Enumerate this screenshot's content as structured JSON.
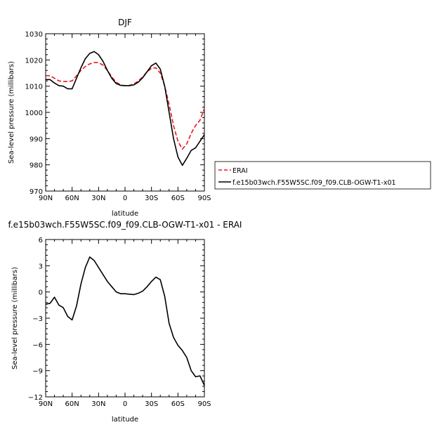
{
  "chart_data": [
    {
      "type": "line",
      "title": "DJF",
      "xlabel": "latitude",
      "ylabel": "Sea-level pressure (millibars)",
      "xlim": [
        90,
        -90
      ],
      "ylim": [
        970,
        1030
      ],
      "x_ticks": [
        90,
        60,
        30,
        0,
        -30,
        -60,
        -90
      ],
      "x_tick_labels": [
        "90N",
        "60N",
        "30N",
        "0",
        "30S",
        "60S",
        "90S"
      ],
      "y_ticks": [
        970,
        980,
        990,
        1000,
        1010,
        1020,
        1030
      ],
      "y_tick_labels": [
        "970",
        "980",
        "990",
        "1000",
        "1010",
        "1020",
        "1030"
      ],
      "legend_position": "right",
      "series": [
        {
          "name": "ERAI",
          "color": "#e8171e",
          "dash": "dashed",
          "x": [
            90,
            85,
            80,
            75,
            70,
            65,
            60,
            55,
            50,
            45,
            40,
            35,
            30,
            25,
            20,
            15,
            10,
            5,
            0,
            -5,
            -10,
            -15,
            -20,
            -25,
            -30,
            -35,
            -40,
            -45,
            -50,
            -55,
            -60,
            -65,
            -70,
            -75,
            -80,
            -85,
            -90
          ],
          "y": [
            1014,
            1014,
            1013,
            1012,
            1011.8,
            1011.8,
            1012,
            1014,
            1016,
            1017.5,
            1018.5,
            1019,
            1019,
            1018,
            1016,
            1013.5,
            1011.5,
            1010.5,
            1010.2,
            1010.3,
            1010.8,
            1012,
            1013.5,
            1015.5,
            1016.8,
            1017,
            1015,
            1010,
            1003,
            995,
            989,
            986,
            988,
            992,
            995,
            997,
            1001.5
          ]
        },
        {
          "name": "f.e15b03wch.F55W5SC.f09_f09.CLB-OGW-T1-x01",
          "color": "#000000",
          "dash": "solid",
          "x": [
            90,
            85,
            80,
            75,
            70,
            65,
            60,
            55,
            50,
            45,
            40,
            35,
            30,
            25,
            20,
            15,
            10,
            5,
            0,
            -5,
            -10,
            -15,
            -20,
            -25,
            -30,
            -35,
            -40,
            -45,
            -50,
            -55,
            -60,
            -65,
            -70,
            -75,
            -80,
            -85,
            -90
          ],
          "y": [
            1012.5,
            1012.5,
            1011.2,
            1010.2,
            1010,
            1009,
            1009,
            1013,
            1017,
            1020.5,
            1022.5,
            1023.2,
            1022,
            1019.5,
            1016,
            1013,
            1011,
            1010.3,
            1010.2,
            1010.2,
            1010.5,
            1011.5,
            1013.2,
            1015.5,
            1017.8,
            1018.8,
            1016.5,
            1010,
            1000,
            990,
            983,
            979.8,
            982.5,
            985.5,
            986.5,
            989,
            991.5
          ]
        }
      ]
    },
    {
      "type": "line",
      "title": "f.e15b03wch.F55W5SC.f09_f09.CLB-OGW-T1-x01 - ERAI",
      "xlabel": "latitude",
      "ylabel": "Sea-level pressure (millibars)",
      "xlim": [
        90,
        -90
      ],
      "ylim": [
        -12,
        6
      ],
      "x_ticks": [
        90,
        60,
        30,
        0,
        -30,
        -60,
        -90
      ],
      "x_tick_labels": [
        "90N",
        "60N",
        "30N",
        "0",
        "30S",
        "60S",
        "90S"
      ],
      "y_ticks": [
        -12,
        -9,
        -6,
        -3,
        0,
        3,
        6
      ],
      "y_tick_labels": [
        "−12",
        "−9",
        "−6",
        "−3",
        "0",
        "3",
        "6"
      ],
      "series": [
        {
          "color": "#000000",
          "dash": "solid",
          "x": [
            90,
            85,
            80,
            75,
            70,
            65,
            60,
            55,
            50,
            45,
            40,
            35,
            30,
            25,
            20,
            15,
            10,
            5,
            0,
            -5,
            -10,
            -15,
            -20,
            -25,
            -30,
            -35,
            -40,
            -45,
            -50,
            -55,
            -60,
            -65,
            -70,
            -75,
            -80,
            -85,
            -90
          ],
          "y": [
            -1.4,
            -1.3,
            -0.6,
            -1.5,
            -1.8,
            -2.8,
            -3.2,
            -1.6,
            0.9,
            2.8,
            4.0,
            3.6,
            2.8,
            2.0,
            1.2,
            0.6,
            0.0,
            -0.2,
            -0.2,
            -0.25,
            -0.3,
            -0.15,
            0.1,
            0.6,
            1.2,
            1.7,
            1.4,
            -0.5,
            -3.6,
            -5.2,
            -6.1,
            -6.7,
            -7.5,
            -9.0,
            -9.7,
            -9.6,
            -10.7
          ]
        }
      ]
    }
  ]
}
